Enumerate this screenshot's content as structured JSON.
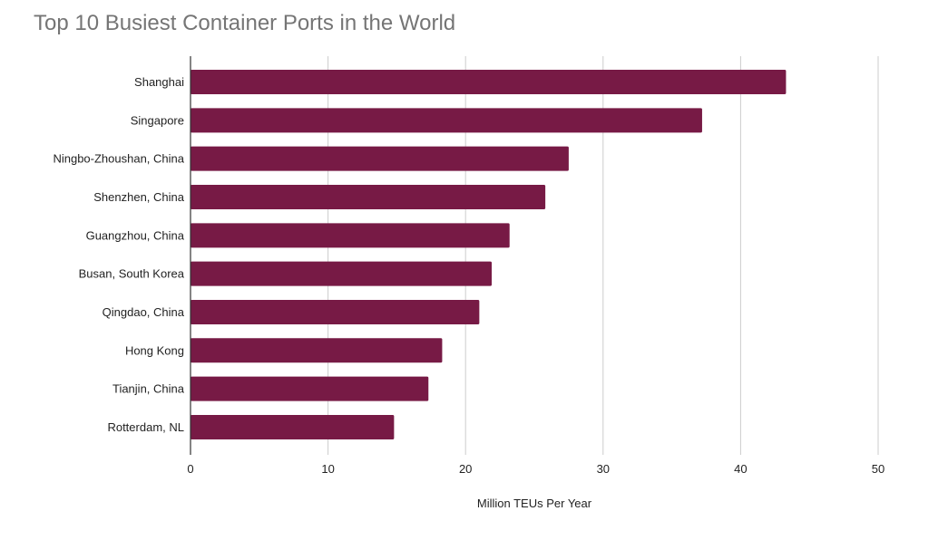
{
  "chart_data": {
    "type": "bar",
    "orientation": "horizontal",
    "title": "Top 10 Busiest Container Ports in the World",
    "xlabel": "Million TEUs Per Year",
    "ylabel": "",
    "categories": [
      "Shanghai",
      "Singapore",
      "Ningbo-Zhoushan, China",
      "Shenzhen, China",
      "Guangzhou, China",
      "Busan, South Korea",
      "Qingdao, China",
      "Hong Kong",
      "Tianjin, China",
      "Rotterdam, NL"
    ],
    "values": [
      43.3,
      37.2,
      27.5,
      25.8,
      23.2,
      21.9,
      21.0,
      18.3,
      17.3,
      14.8
    ],
    "xlim": [
      0,
      50
    ],
    "xticks": [
      "0",
      "10",
      "20",
      "30",
      "40",
      "50"
    ],
    "grid": "vertical",
    "legend": "none",
    "bar_color": "#771a45",
    "grid_color": "#cccccc",
    "text_color": "#222222",
    "title_color": "#757575"
  }
}
